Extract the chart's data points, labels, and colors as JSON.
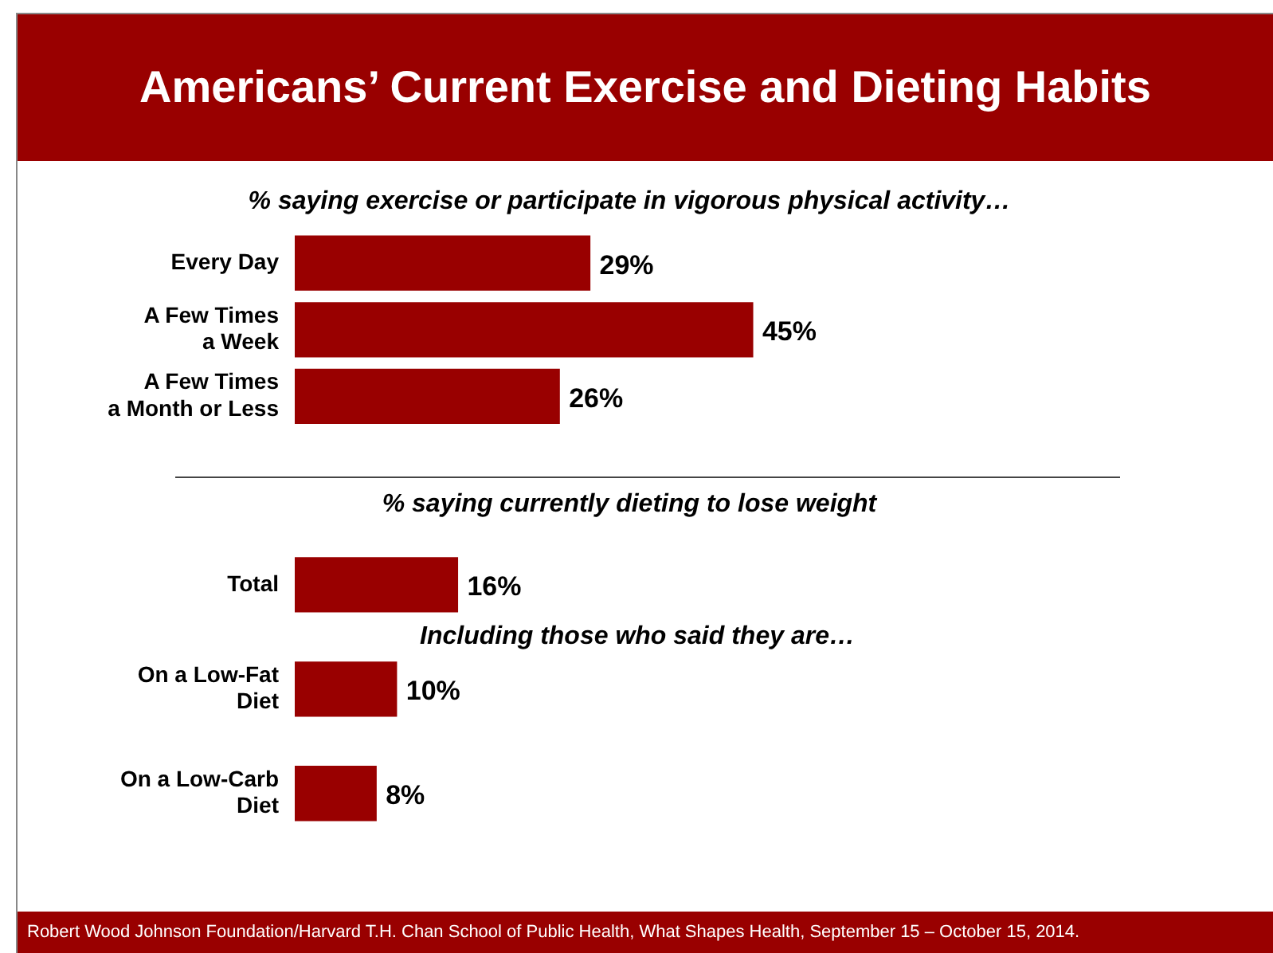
{
  "chart_data": [
    {
      "type": "bar",
      "orientation": "horizontal",
      "title": "Americans’ Current Exercise and Dieting Habits",
      "subtitle": "% saying exercise or participate in vigorous physical activity…",
      "categories": [
        "Every Day",
        "A Few Times a Week",
        "A Few Times a Month or Less"
      ],
      "values": [
        29,
        45,
        26
      ],
      "value_labels": [
        "29%",
        "45%",
        "26%"
      ],
      "color": "#990000",
      "grid": false,
      "legend": false,
      "tick_labels": "y",
      "annotations": [
        "Robert Wood Johnson Foundation/Harvard T.H. Chan School of Public Health, What Shapes Health, September 15 – October 15, 2014."
      ]
    },
    {
      "type": "bar",
      "orientation": "horizontal",
      "subtitle": "% saying currently dieting to lose weight",
      "categories": [
        "Total",
        "On a Low-Fat Diet",
        "On a Low-Carb Diet"
      ],
      "values": [
        16,
        10,
        8
      ],
      "value_labels": [
        "16%",
        "10%",
        "8%"
      ],
      "color": "#990000",
      "grid": false,
      "legend": false,
      "tick_labels": "y",
      "annotations": [
        "Including those who said they are…"
      ]
    }
  ]
}
